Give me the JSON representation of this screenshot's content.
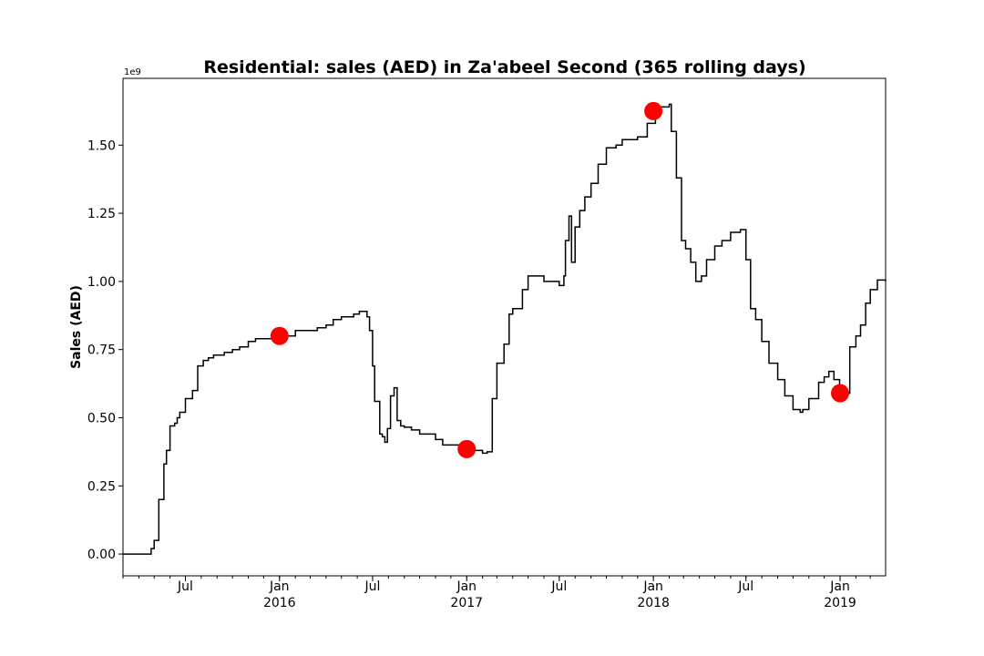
{
  "chart_data": {
    "type": "line",
    "title": "Residential: sales (AED) in Za'abeel Second (365 rolling days)",
    "ylabel": "Sales (AED)",
    "xlabel": "",
    "y_offset_label": "1e9",
    "x_range": [
      "2015-03-01",
      "2019-03-31"
    ],
    "ylim": [
      -0.08,
      1.745
    ],
    "yticks": [
      0.0,
      0.25,
      0.5,
      0.75,
      1.0,
      1.25,
      1.5
    ],
    "ytick_labels": [
      "0.00",
      "0.25",
      "0.50",
      "0.75",
      "1.00",
      "1.25",
      "1.50"
    ],
    "xticks": [
      {
        "date": "2015-07-01",
        "label": "Jul",
        "sublabel": ""
      },
      {
        "date": "2016-01-01",
        "label": "Jan",
        "sublabel": "2016"
      },
      {
        "date": "2016-07-01",
        "label": "Jul",
        "sublabel": ""
      },
      {
        "date": "2017-01-01",
        "label": "Jan",
        "sublabel": "2017"
      },
      {
        "date": "2017-07-01",
        "label": "Jul",
        "sublabel": ""
      },
      {
        "date": "2018-01-01",
        "label": "Jan",
        "sublabel": "2018"
      },
      {
        "date": "2018-07-01",
        "label": "Jul",
        "sublabel": ""
      },
      {
        "date": "2019-01-01",
        "label": "Jan",
        "sublabel": "2019"
      }
    ],
    "grid": false,
    "series": [
      {
        "color": "#000000",
        "step": true,
        "x": [
          "2015-03-01",
          "2015-04-25",
          "2015-05-01",
          "2015-05-10",
          "2015-05-20",
          "2015-05-25",
          "2015-06-01",
          "2015-06-10",
          "2015-06-15",
          "2015-06-20",
          "2015-07-01",
          "2015-07-15",
          "2015-07-25",
          "2015-08-05",
          "2015-08-15",
          "2015-08-25",
          "2015-09-01",
          "2015-09-15",
          "2015-10-01",
          "2015-10-15",
          "2015-11-01",
          "2015-11-15",
          "2015-12-15",
          "2016-01-01",
          "2016-02-01",
          "2016-03-15",
          "2016-04-01",
          "2016-04-15",
          "2016-05-01",
          "2016-05-25",
          "2016-06-05",
          "2016-06-15",
          "2016-06-20",
          "2016-06-25",
          "2016-07-01",
          "2016-07-05",
          "2016-07-15",
          "2016-07-20",
          "2016-07-25",
          "2016-07-30",
          "2016-08-05",
          "2016-08-12",
          "2016-08-18",
          "2016-08-25",
          "2016-09-01",
          "2016-09-15",
          "2016-10-01",
          "2016-11-01",
          "2016-11-15",
          "2016-12-10",
          "2017-01-01",
          "2017-01-15",
          "2017-02-01",
          "2017-02-10",
          "2017-02-20",
          "2017-03-01",
          "2017-03-15",
          "2017-03-25",
          "2017-04-01",
          "2017-04-20",
          "2017-05-01",
          "2017-06-01",
          "2017-06-25",
          "2017-07-01",
          "2017-07-10",
          "2017-07-13",
          "2017-07-20",
          "2017-07-25",
          "2017-08-01",
          "2017-08-10",
          "2017-08-20",
          "2017-09-01",
          "2017-09-15",
          "2017-10-01",
          "2017-10-20",
          "2017-11-01",
          "2017-12-01",
          "2017-12-20",
          "2018-01-05",
          "2018-01-15",
          "2018-02-01",
          "2018-02-05",
          "2018-02-15",
          "2018-02-25",
          "2018-03-05",
          "2018-03-15",
          "2018-03-25",
          "2018-04-05",
          "2018-04-15",
          "2018-05-01",
          "2018-05-15",
          "2018-06-01",
          "2018-06-20",
          "2018-07-01",
          "2018-07-10",
          "2018-07-20",
          "2018-08-01",
          "2018-08-15",
          "2018-09-01",
          "2018-09-15",
          "2018-10-01",
          "2018-10-15",
          "2018-10-20",
          "2018-11-01",
          "2018-11-20",
          "2018-12-01",
          "2018-12-10",
          "2018-12-20",
          "2018-12-31",
          "2019-01-05",
          "2019-01-20",
          "2019-02-01",
          "2019-02-10",
          "2019-02-20",
          "2019-03-01",
          "2019-03-15",
          "2019-03-31"
        ],
        "y": [
          0.0,
          0.02,
          0.05,
          0.2,
          0.33,
          0.38,
          0.47,
          0.48,
          0.5,
          0.52,
          0.57,
          0.6,
          0.69,
          0.71,
          0.72,
          0.73,
          0.73,
          0.74,
          0.75,
          0.76,
          0.78,
          0.79,
          0.79,
          0.8,
          0.82,
          0.83,
          0.84,
          0.86,
          0.87,
          0.88,
          0.89,
          0.89,
          0.87,
          0.82,
          0.69,
          0.56,
          0.44,
          0.43,
          0.41,
          0.46,
          0.58,
          0.61,
          0.49,
          0.47,
          0.465,
          0.455,
          0.44,
          0.42,
          0.4,
          0.4,
          0.39,
          0.38,
          0.37,
          0.375,
          0.57,
          0.7,
          0.77,
          0.88,
          0.9,
          0.97,
          1.02,
          1.0,
          1.0,
          0.985,
          1.02,
          1.15,
          1.24,
          1.07,
          1.2,
          1.26,
          1.31,
          1.36,
          1.43,
          1.49,
          1.5,
          1.52,
          1.53,
          1.58,
          1.62,
          1.64,
          1.65,
          1.55,
          1.38,
          1.15,
          1.12,
          1.07,
          1.0,
          1.02,
          1.08,
          1.13,
          1.15,
          1.18,
          1.19,
          1.08,
          0.9,
          0.86,
          0.78,
          0.7,
          0.64,
          0.58,
          0.53,
          0.52,
          0.53,
          0.57,
          0.63,
          0.65,
          0.67,
          0.64,
          0.6,
          0.59,
          0.76,
          0.8,
          0.84,
          0.92,
          0.97,
          1.005,
          1.0
        ]
      }
    ],
    "markers": {
      "color": "#ff0000",
      "x": [
        "2016-01-01",
        "2017-01-01",
        "2018-01-01",
        "2019-01-01"
      ],
      "y": [
        0.8,
        0.385,
        1.625,
        0.59
      ]
    }
  }
}
